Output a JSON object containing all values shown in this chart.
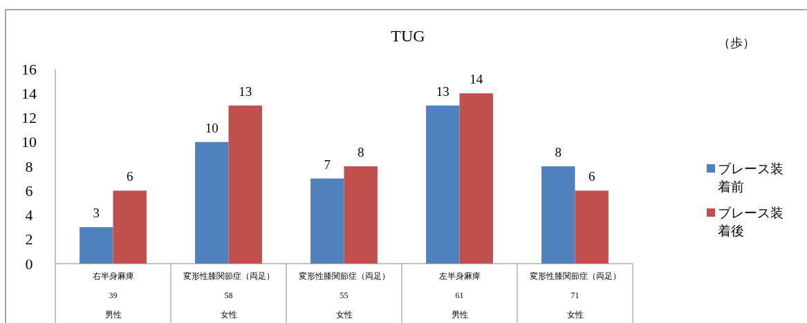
{
  "chart_data": {
    "type": "bar",
    "title": "TUG",
    "annotations": [
      "（歩）"
    ],
    "categories": [
      "右半身麻痺\n39\n男性",
      "変形性膝関節症（両足）\n58\n女性",
      "変形性膝関節症（両足）\n55\n女性",
      "左半身麻痺\n61\n男性",
      "変形性膝関節症（両足）\n71\n女性"
    ],
    "series": [
      {
        "name": "ブレース装着前",
        "color": "#4f81bd",
        "values": [
          3,
          10,
          7,
          13,
          8
        ]
      },
      {
        "name": "ブレース装着後",
        "color": "#c0504d",
        "values": [
          6,
          13,
          8,
          14,
          6
        ]
      }
    ],
    "ylim": [
      0,
      16
    ],
    "yticks": [
      0,
      2,
      4,
      6,
      8,
      10,
      12,
      14,
      16
    ],
    "data_labels": true,
    "grid": false,
    "legend": "right"
  }
}
